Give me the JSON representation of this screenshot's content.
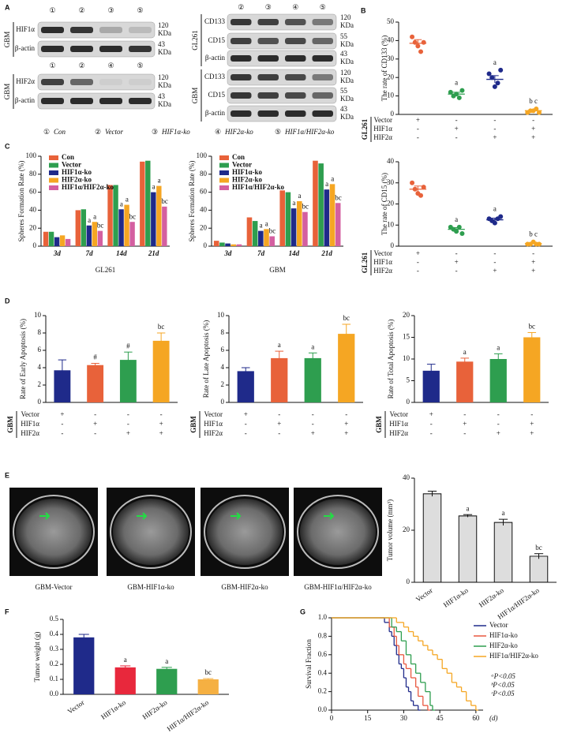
{
  "panel_labels": [
    "A",
    "B",
    "C",
    "D",
    "E",
    "F",
    "G"
  ],
  "blots": [
    {
      "cell": "GBM",
      "lanes": [
        "①",
        "②",
        "③",
        "⑤"
      ],
      "rows": [
        {
          "protein": "HIF1α",
          "size": "120",
          "unit": "KDa"
        },
        {
          "protein": "β-actin",
          "size": "43",
          "unit": "KDa"
        }
      ]
    },
    {
      "cell": "GBM",
      "lanes": [
        "①",
        "②",
        "④",
        "⑤"
      ],
      "rows": [
        {
          "protein": "HIF2α",
          "size": "120",
          "unit": "KDa"
        },
        {
          "protein": "β-actin",
          "size": "43",
          "unit": "KDa"
        }
      ]
    },
    {
      "cell": "GL261",
      "lanes": [
        "②",
        "③",
        "④",
        "⑤"
      ],
      "rows": [
        {
          "protein": "CD133",
          "size": "120",
          "unit": "KDa"
        },
        {
          "protein": "CD15",
          "size": "55",
          "unit": "KDa"
        },
        {
          "protein": "β-actin",
          "size": "43",
          "unit": "KDa"
        }
      ]
    },
    {
      "cell": "GBM",
      "rows": [
        {
          "protein": "CD133",
          "size": "120",
          "unit": "KDa"
        },
        {
          "protein": "CD15",
          "size": "55",
          "unit": "KDa"
        },
        {
          "protein": "β-actin",
          "size": "43",
          "unit": "KDa"
        }
      ]
    }
  ],
  "lane_legend": [
    {
      "mark": "①",
      "name": "Con"
    },
    {
      "mark": "②",
      "name": "Vector"
    },
    {
      "mark": "③",
      "name": "HIF1α-ko"
    },
    {
      "mark": "④",
      "name": "HIF2α-ko"
    },
    {
      "mark": "⑤",
      "name": "HIF1α/HIF2α-ko"
    }
  ],
  "mri_images": [
    "GBM-Vector",
    "GBM-HIF1α-ko",
    "GBM-HIF2α-ko",
    "GBM-HIF1α/HIF2α-ko"
  ],
  "chart_data": [
    {
      "type": "dot",
      "y_label": "The rate of CD133 (%)",
      "ylim": [
        0,
        50
      ],
      "yticks": [
        0,
        10,
        20,
        30,
        40,
        50
      ],
      "colors": [
        "#e8623a",
        "#2e9e4f",
        "#1f2a8a",
        "#f5a623"
      ],
      "points": [
        [
          42,
          39,
          37,
          34,
          39
        ],
        [
          12,
          10,
          11,
          9,
          13
        ],
        [
          22,
          20,
          15,
          17,
          24
        ],
        [
          1,
          2,
          2,
          3,
          1
        ]
      ],
      "values": [
        38.5,
        11,
        19,
        2
      ],
      "errors": [
        2,
        1,
        2,
        0.5
      ],
      "annotations": [
        null,
        "a",
        "a",
        "b c"
      ],
      "conditions": {
        "group": "GL261",
        "rows": [
          {
            "name": "Vector",
            "signs": [
              "+",
              "-",
              "-",
              "-"
            ]
          },
          {
            "name": "HIF1α",
            "signs": [
              "-",
              "+",
              "-",
              "+"
            ]
          },
          {
            "name": "HIF2α",
            "signs": [
              "-",
              "-",
              "+",
              "+"
            ]
          }
        ]
      }
    },
    {
      "type": "dot",
      "y_label": "The rate of CD15 (%)",
      "ylim": [
        0,
        40
      ],
      "yticks": [
        0,
        10,
        20,
        30,
        40
      ],
      "colors": [
        "#e8623a",
        "#2e9e4f",
        "#1f2a8a",
        "#f5a623"
      ],
      "points": [
        [
          30,
          27,
          25,
          24,
          28
        ],
        [
          9,
          8,
          7,
          9,
          6
        ],
        [
          13,
          12,
          11,
          13,
          14
        ],
        [
          1,
          1,
          2,
          1,
          1
        ]
      ],
      "values": [
        27,
        8,
        12.5,
        1.2
      ],
      "errors": [
        1.5,
        0.8,
        0.8,
        0.3
      ],
      "annotations": [
        null,
        "a",
        "a",
        "b c"
      ],
      "conditions": {
        "group": "GL261",
        "rows": [
          {
            "name": "Vector",
            "signs": [
              "+",
              "-",
              "-",
              "-"
            ]
          },
          {
            "name": "HIF1α",
            "signs": [
              "-",
              "+",
              "-",
              "+"
            ]
          },
          {
            "name": "HIF2α",
            "signs": [
              "-",
              "-",
              "+",
              "+"
            ]
          }
        ]
      }
    },
    {
      "type": "bar",
      "x_label": "GL261",
      "y_label": "Spheres Formation Rate (%)",
      "ylim": [
        0,
        100
      ],
      "yticks": [
        0,
        20,
        40,
        60,
        80,
        100
      ],
      "categories": [
        "3d",
        "7d",
        "14d",
        "21d"
      ],
      "series": [
        {
          "name": "Con",
          "color": "#e8623a",
          "values": [
            16,
            40,
            68,
            94
          ]
        },
        {
          "name": "Vector",
          "color": "#2e9e4f",
          "values": [
            16,
            41,
            68,
            95
          ]
        },
        {
          "name": "HIF1α-ko",
          "color": "#1f2a8a",
          "values": [
            10,
            23,
            41,
            60
          ],
          "annotations": [
            null,
            "a",
            "a",
            "a"
          ]
        },
        {
          "name": "HIF2α-ko",
          "color": "#f5a623",
          "values": [
            12,
            27,
            46,
            67
          ],
          "annotations": [
            null,
            "a",
            "a",
            "a"
          ]
        },
        {
          "name": "HIF1α/HIF2α-ko",
          "color": "#d45fa0",
          "values": [
            8,
            17,
            27,
            44
          ],
          "annotations": [
            null,
            "bc",
            "bc",
            "bc"
          ]
        }
      ]
    },
    {
      "type": "bar",
      "x_label": "GBM",
      "y_label": "Spheres Formation Rate (%)",
      "ylim": [
        0,
        100
      ],
      "yticks": [
        0,
        20,
        40,
        60,
        80,
        100
      ],
      "categories": [
        "3d",
        "7d",
        "14d",
        "21d"
      ],
      "series": [
        {
          "name": "Con",
          "color": "#e8623a",
          "values": [
            6,
            32,
            62,
            95
          ]
        },
        {
          "name": "Vector",
          "color": "#2e9e4f",
          "values": [
            4,
            28,
            60,
            92
          ]
        },
        {
          "name": "HIF1α-ko",
          "color": "#1f2a8a",
          "values": [
            3,
            17,
            42,
            63
          ],
          "annotations": [
            null,
            "a",
            "a",
            "a"
          ]
        },
        {
          "name": "HIF2α-ko",
          "color": "#f5a623",
          "values": [
            2,
            19,
            50,
            69
          ],
          "annotations": [
            null,
            "a",
            "a",
            "a"
          ]
        },
        {
          "name": "HIF1α/HIF2α-ko",
          "color": "#d45fa0",
          "values": [
            2,
            11,
            38,
            48
          ],
          "annotations": [
            null,
            "bc",
            "bc",
            "bc"
          ]
        }
      ]
    },
    {
      "type": "bar",
      "y_label": "Rate of Early Apoptosis (%)",
      "ylim": [
        0,
        10
      ],
      "yticks": [
        0,
        2,
        4,
        6,
        8,
        10
      ],
      "colors": [
        "#1f2a8a",
        "#e8623a",
        "#2e9e4f",
        "#f5a623"
      ],
      "values": [
        3.7,
        4.3,
        4.9,
        7.1
      ],
      "errors": [
        1.2,
        0.2,
        0.9,
        0.9
      ],
      "annotations": [
        null,
        "#",
        "#",
        "bc"
      ],
      "conditions": {
        "group": "GBM",
        "rows": [
          {
            "name": "Vector",
            "signs": [
              "+",
              "-",
              "-",
              "-"
            ]
          },
          {
            "name": "HIF1α",
            "signs": [
              "-",
              "+",
              "-",
              "+"
            ]
          },
          {
            "name": "HIF2α",
            "signs": [
              "-",
              "-",
              "+",
              "+"
            ]
          }
        ]
      }
    },
    {
      "type": "bar",
      "y_label": "Rate of Late Apoptosis (%)",
      "ylim": [
        0,
        10
      ],
      "yticks": [
        0,
        2,
        4,
        6,
        8,
        10
      ],
      "colors": [
        "#1f2a8a",
        "#e8623a",
        "#2e9e4f",
        "#f5a623"
      ],
      "values": [
        3.6,
        5.1,
        5.1,
        7.9
      ],
      "errors": [
        0.4,
        0.8,
        0.6,
        1.1
      ],
      "annotations": [
        null,
        "a",
        "a",
        "bc"
      ],
      "conditions": {
        "group": "GBM",
        "rows": [
          {
            "name": "Vector",
            "signs": [
              "+",
              "-",
              "-",
              "-"
            ]
          },
          {
            "name": "HIF1α",
            "signs": [
              "-",
              "+",
              "-",
              "+"
            ]
          },
          {
            "name": "HIF2α",
            "signs": [
              "-",
              "-",
              "+",
              "+"
            ]
          }
        ]
      }
    },
    {
      "type": "bar",
      "y_label": "Rate of Total Apoptosis (%)",
      "ylim": [
        0,
        20
      ],
      "yticks": [
        0,
        5,
        10,
        15,
        20
      ],
      "colors": [
        "#1f2a8a",
        "#e8623a",
        "#2e9e4f",
        "#f5a623"
      ],
      "values": [
        7.3,
        9.4,
        10,
        15
      ],
      "errors": [
        1.5,
        0.8,
        1.2,
        1.1
      ],
      "annotations": [
        null,
        "a",
        "a",
        "bc"
      ],
      "conditions": {
        "group": "GBM",
        "rows": [
          {
            "name": "Vector",
            "signs": [
              "+",
              "-",
              "-",
              "-"
            ]
          },
          {
            "name": "HIF1α",
            "signs": [
              "-",
              "+",
              "-",
              "+"
            ]
          },
          {
            "name": "HIF2α",
            "signs": [
              "-",
              "-",
              "+",
              "+"
            ]
          }
        ]
      }
    },
    {
      "type": "bar",
      "hatch": true,
      "y_label": "Tumor volume (mm³)",
      "ylim": [
        0,
        40
      ],
      "yticks": [
        0,
        20,
        40
      ],
      "categories": [
        "Vector",
        "HIF1α-ko",
        "HIF2α-ko",
        "HIF1α/HIF2α-ko"
      ],
      "values": [
        34,
        25.5,
        23,
        10
      ],
      "errors": [
        1,
        0.5,
        1.2,
        1
      ],
      "annotations": [
        null,
        "a",
        "a",
        "bc"
      ]
    },
    {
      "type": "bar",
      "y_label": "Tumor weight (g)",
      "ylim": [
        0,
        0.5
      ],
      "yticks": [
        {
          "value": 0,
          "label": "0.0"
        },
        0.1,
        0.2,
        0.3,
        0.4,
        0.5
      ],
      "colors": [
        "#1f2a8a",
        "#e8283c",
        "#2e9e4f",
        "#f5b042"
      ],
      "categories": [
        "Vector",
        "HIF1α-ko",
        "HIF2α-ko",
        "HIF1α/HIF2α-ko"
      ],
      "values": [
        0.38,
        0.18,
        0.17,
        0.1
      ],
      "errors": [
        0.02,
        0.01,
        0.01,
        0.005
      ],
      "annotations": [
        null,
        "a",
        "a",
        "bc"
      ]
    },
    {
      "type": "step",
      "y_label": "Survival Fraction",
      "x_label": "(d)",
      "xlim": [
        0,
        63
      ],
      "xticks": [
        0,
        15,
        30,
        45,
        60
      ],
      "ylim": [
        0,
        1
      ],
      "yticks": [
        {
          "value": 0,
          "label": "0.0"
        },
        0.2,
        0.4,
        0.6,
        0.8,
        {
          "value": 1,
          "label": "1.0"
        }
      ],
      "series": [
        {
          "name": "Vector",
          "color": "#1f2a8a",
          "x": [
            0,
            20,
            22,
            24,
            25,
            26,
            27,
            28,
            29,
            30,
            31,
            32,
            33,
            34,
            36
          ],
          "values": [
            1,
            1,
            0.95,
            0.85,
            0.8,
            0.7,
            0.6,
            0.5,
            0.45,
            0.35,
            0.25,
            0.2,
            0.1,
            0.05,
            0
          ]
        },
        {
          "name": "HIF1α-ko",
          "color": "#e9573f",
          "x": [
            0,
            22,
            24,
            26,
            27,
            28,
            30,
            31,
            33,
            35,
            36,
            38,
            40
          ],
          "values": [
            1,
            1,
            0.9,
            0.8,
            0.7,
            0.6,
            0.5,
            0.45,
            0.35,
            0.25,
            0.15,
            0.05,
            0
          ]
        },
        {
          "name": "HIF2α-ko",
          "color": "#2e9e4f",
          "x": [
            0,
            22,
            25,
            27,
            29,
            31,
            33,
            35,
            37,
            39,
            41,
            42
          ],
          "values": [
            1,
            1,
            0.9,
            0.85,
            0.75,
            0.6,
            0.5,
            0.4,
            0.3,
            0.2,
            0.05,
            0
          ]
        },
        {
          "name": "HIF1α/HIF2α-ko",
          "color": "#f5a623",
          "x": [
            0,
            25,
            27,
            30,
            32,
            34,
            36,
            38,
            40,
            42,
            44,
            46,
            48,
            50,
            52,
            54,
            56,
            58,
            60
          ],
          "values": [
            1,
            1,
            0.95,
            0.9,
            0.85,
            0.8,
            0.75,
            0.7,
            0.65,
            0.6,
            0.55,
            0.45,
            0.4,
            0.3,
            0.25,
            0.2,
            0.1,
            0.05,
            0
          ]
        }
      ],
      "notes": [
        "ᵃP<0.05",
        "ᵇP<0.05",
        "ᶜP<0.05"
      ]
    }
  ]
}
